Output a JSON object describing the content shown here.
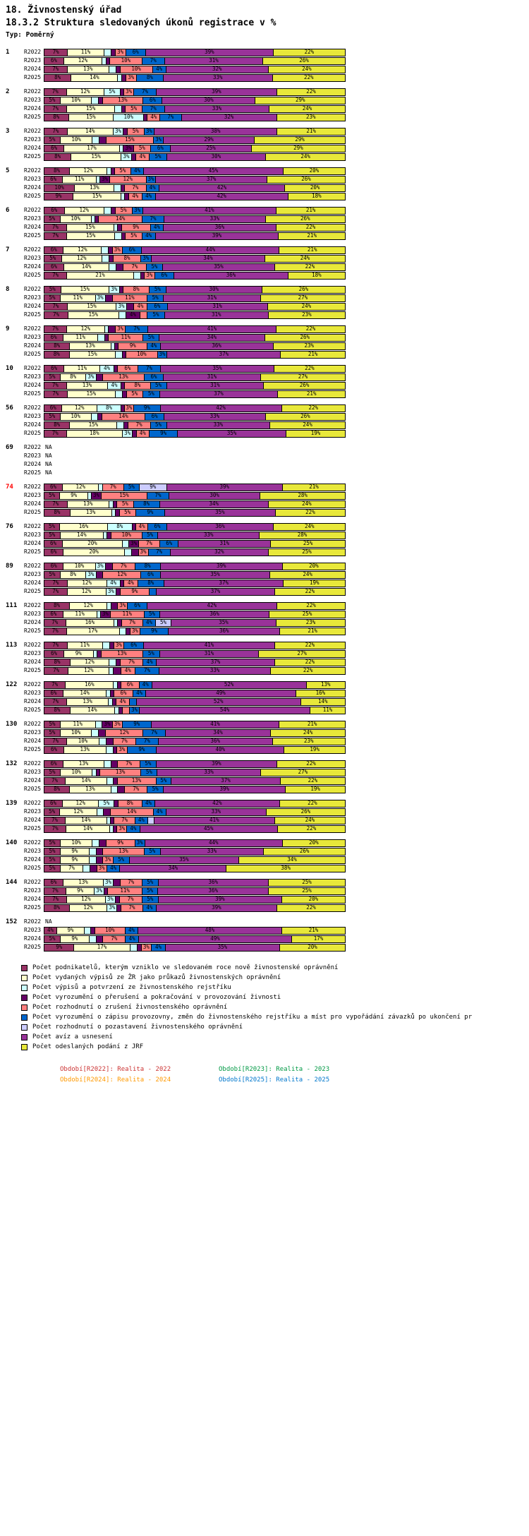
{
  "header": {
    "line1": "18. Živnostenský úřad",
    "line2": "18.3.2 Struktura sledovaných úkonů registrace v %",
    "line3": "Typ: Poměrný"
  },
  "chart_data": {
    "type": "bar",
    "stacked": true,
    "orientation": "horizontal",
    "unit": "%",
    "value_suffix": "%",
    "label_min": 3,
    "na_text": "NA",
    "grid": false,
    "legend_position": "bottom",
    "xlim": [
      0,
      100
    ],
    "highlight_color": "#FF0000",
    "row_labels": [
      "R2022",
      "R2023",
      "R2024",
      "R2025"
    ],
    "series": [
      {
        "name": "Počet podnikatelů, kterým vzniklo ve sledovaném roce nově živnostenské oprávnění",
        "color": "#993366"
      },
      {
        "name": "Počet vydaných výpisů ze ŽR jako průkazů živnostenských oprávnění",
        "color": "#FFFFCC"
      },
      {
        "name": "Počet výpisů a potvrzení ze živnostenského rejstříku",
        "color": "#CCFFFF"
      },
      {
        "name": "Počet vyrozumění o přerušení a pokračování v provozování živnosti",
        "color": "#660066"
      },
      {
        "name": "Počet rozhodnutí o zrušení živnostenského oprávnění",
        "color": "#FF8080"
      },
      {
        "name": "Počet vyrozumění o zápisu provozovny, změn do živnostenského rejstříku a míst pro vypořádání závazků po ukončení pr",
        "color": "#0066CC"
      },
      {
        "name": "Počet rozhodnutí o pozastavení živnostenského oprávnění",
        "color": "#CCCCFF"
      },
      {
        "name": "Počet avíz a usnesení",
        "color": "#993399"
      },
      {
        "name": "Počet odeslaných podání z JRF",
        "color": "#E8E83A"
      }
    ],
    "groups": [
      {
        "id": "1",
        "highlight": false,
        "rows": [
          [
            7,
            11,
            2,
            1,
            3,
            6,
            0,
            39,
            22
          ],
          [
            6,
            12,
            1,
            1,
            10,
            7,
            0,
            31,
            26
          ],
          [
            7,
            13,
            2,
            1,
            10,
            4,
            0,
            32,
            24
          ],
          [
            8,
            14,
            1,
            1,
            3,
            8,
            0,
            33,
            22
          ]
        ]
      },
      {
        "id": "2",
        "highlight": false,
        "rows": [
          [
            7,
            12,
            5,
            1,
            3,
            7,
            0,
            39,
            22
          ],
          [
            5,
            10,
            2,
            1,
            13,
            6,
            0,
            30,
            29
          ],
          [
            7,
            15,
            2,
            1,
            5,
            7,
            0,
            33,
            24
          ],
          [
            8,
            15,
            10,
            1,
            4,
            7,
            0,
            32,
            23
          ]
        ]
      },
      {
        "id": "3",
        "highlight": false,
        "rows": [
          [
            7,
            14,
            3,
            1,
            5,
            3,
            0,
            38,
            21
          ],
          [
            5,
            10,
            2,
            2,
            15,
            3,
            0,
            29,
            29
          ],
          [
            6,
            17,
            1,
            3,
            5,
            6,
            0,
            25,
            29
          ],
          [
            8,
            15,
            3,
            1,
            4,
            5,
            0,
            30,
            24
          ]
        ]
      },
      {
        "id": "5",
        "highlight": false,
        "rows": [
          [
            8,
            12,
            1,
            1,
            5,
            4,
            0,
            45,
            20
          ],
          [
            6,
            11,
            1,
            3,
            12,
            3,
            0,
            37,
            26
          ],
          [
            10,
            13,
            2,
            1,
            7,
            4,
            0,
            42,
            20
          ],
          [
            9,
            15,
            1,
            1,
            4,
            4,
            0,
            42,
            18
          ]
        ]
      },
      {
        "id": "6",
        "highlight": false,
        "rows": [
          [
            6,
            12,
            2,
            1,
            5,
            3,
            0,
            41,
            21
          ],
          [
            5,
            10,
            1,
            1,
            14,
            7,
            0,
            33,
            26
          ],
          [
            7,
            15,
            1,
            1,
            9,
            4,
            0,
            36,
            22
          ],
          [
            7,
            15,
            2,
            1,
            5,
            4,
            0,
            39,
            21
          ]
        ]
      },
      {
        "id": "7",
        "highlight": false,
        "rows": [
          [
            6,
            12,
            2,
            1,
            3,
            6,
            0,
            44,
            21
          ],
          [
            5,
            12,
            2,
            1,
            8,
            3,
            0,
            34,
            24
          ],
          [
            6,
            14,
            2,
            2,
            7,
            5,
            0,
            35,
            22
          ],
          [
            7,
            21,
            2,
            1,
            3,
            6,
            0,
            36,
            18
          ]
        ]
      },
      {
        "id": "8",
        "highlight": false,
        "rows": [
          [
            5,
            15,
            3,
            1,
            8,
            5,
            0,
            30,
            26
          ],
          [
            5,
            11,
            3,
            2,
            11,
            5,
            0,
            31,
            27
          ],
          [
            7,
            15,
            3,
            2,
            4,
            6,
            0,
            31,
            24
          ],
          [
            7,
            15,
            2,
            4,
            2,
            5,
            0,
            31,
            23
          ]
        ]
      },
      {
        "id": "9",
        "highlight": false,
        "rows": [
          [
            7,
            12,
            1,
            2,
            3,
            7,
            0,
            41,
            22
          ],
          [
            6,
            11,
            2,
            1,
            11,
            5,
            0,
            34,
            26
          ],
          [
            8,
            13,
            1,
            1,
            9,
            4,
            0,
            36,
            23
          ],
          [
            8,
            15,
            2,
            1,
            10,
            3,
            0,
            37,
            21
          ]
        ]
      },
      {
        "id": "10",
        "highlight": false,
        "rows": [
          [
            6,
            11,
            4,
            1,
            6,
            7,
            0,
            35,
            22
          ],
          [
            5,
            8,
            3,
            2,
            13,
            6,
            0,
            31,
            27
          ],
          [
            7,
            13,
            4,
            1,
            8,
            5,
            0,
            31,
            26
          ],
          [
            7,
            15,
            2,
            1,
            5,
            5,
            0,
            37,
            21
          ]
        ]
      },
      {
        "id": "56",
        "highlight": false,
        "rows": [
          [
            6,
            12,
            8,
            1,
            3,
            9,
            0,
            42,
            22
          ],
          [
            5,
            10,
            2,
            1,
            14,
            6,
            0,
            33,
            26
          ],
          [
            8,
            15,
            2,
            1,
            7,
            5,
            0,
            33,
            24
          ],
          [
            7,
            18,
            3,
            1,
            4,
            9,
            0,
            35,
            19
          ]
        ]
      },
      {
        "id": "69",
        "highlight": false,
        "rows": [
          null,
          null,
          null,
          null
        ]
      },
      {
        "id": "74",
        "highlight": true,
        "rows": [
          [
            6,
            12,
            1,
            0,
            7,
            5,
            9,
            39,
            21
          ],
          [
            5,
            9,
            1,
            3,
            15,
            7,
            0,
            30,
            28
          ],
          [
            7,
            13,
            1,
            1,
            5,
            8,
            0,
            34,
            24
          ],
          [
            8,
            13,
            1,
            1,
            5,
            9,
            0,
            35,
            22
          ]
        ]
      },
      {
        "id": "76",
        "highlight": false,
        "rows": [
          [
            5,
            16,
            8,
            1,
            4,
            6,
            0,
            36,
            24
          ],
          [
            5,
            14,
            1,
            1,
            10,
            5,
            0,
            33,
            28
          ],
          [
            6,
            20,
            2,
            3,
            7,
            6,
            0,
            31,
            25
          ],
          [
            6,
            20,
            2,
            2,
            3,
            7,
            0,
            32,
            25
          ]
        ]
      },
      {
        "id": "89",
        "highlight": false,
        "rows": [
          [
            6,
            10,
            3,
            2,
            7,
            8,
            0,
            39,
            20
          ],
          [
            5,
            8,
            3,
            2,
            12,
            6,
            0,
            35,
            24
          ],
          [
            7,
            12,
            4,
            1,
            4,
            8,
            0,
            37,
            19
          ],
          [
            7,
            12,
            3,
            1,
            9,
            2,
            0,
            37,
            22
          ]
        ]
      },
      {
        "id": "111",
        "highlight": false,
        "rows": [
          [
            8,
            12,
            1,
            2,
            3,
            6,
            0,
            42,
            22
          ],
          [
            6,
            11,
            1,
            3,
            11,
            5,
            0,
            36,
            25
          ],
          [
            7,
            16,
            1,
            1,
            7,
            4,
            5,
            35,
            23
          ],
          [
            7,
            17,
            2,
            1,
            3,
            9,
            0,
            36,
            21
          ]
        ]
      },
      {
        "id": "113",
        "highlight": false,
        "rows": [
          [
            7,
            11,
            2,
            1,
            3,
            6,
            0,
            41,
            22
          ],
          [
            6,
            9,
            1,
            1,
            13,
            5,
            0,
            31,
            27
          ],
          [
            8,
            12,
            2,
            1,
            7,
            4,
            0,
            37,
            22
          ],
          [
            7,
            12,
            1,
            2,
            4,
            7,
            0,
            33,
            22
          ]
        ]
      },
      {
        "id": "122",
        "highlight": false,
        "rows": [
          [
            7,
            16,
            1,
            1,
            6,
            4,
            0,
            52,
            13
          ],
          [
            6,
            14,
            1,
            1,
            6,
            4,
            0,
            49,
            16
          ],
          [
            7,
            13,
            1,
            1,
            4,
            2,
            0,
            52,
            14
          ],
          [
            8,
            14,
            1,
            1,
            2,
            3,
            0,
            54,
            11
          ]
        ]
      },
      {
        "id": "130",
        "highlight": false,
        "rows": [
          [
            5,
            11,
            2,
            3,
            3,
            9,
            0,
            41,
            21
          ],
          [
            5,
            10,
            2,
            2,
            12,
            7,
            0,
            34,
            24
          ],
          [
            7,
            10,
            2,
            2,
            7,
            7,
            0,
            36,
            23
          ],
          [
            6,
            13,
            2,
            1,
            3,
            9,
            0,
            40,
            19
          ]
        ]
      },
      {
        "id": "132",
        "highlight": false,
        "rows": [
          [
            6,
            13,
            2,
            2,
            7,
            5,
            0,
            39,
            22
          ],
          [
            5,
            10,
            1,
            1,
            13,
            5,
            0,
            33,
            27
          ],
          [
            7,
            14,
            2,
            1,
            13,
            5,
            0,
            37,
            22
          ],
          [
            8,
            13,
            2,
            2,
            7,
            5,
            0,
            39,
            19
          ]
        ]
      },
      {
        "id": "139",
        "highlight": false,
        "rows": [
          [
            6,
            12,
            5,
            1,
            8,
            4,
            0,
            42,
            22
          ],
          [
            5,
            12,
            2,
            2,
            14,
            4,
            0,
            33,
            26
          ],
          [
            7,
            14,
            1,
            1,
            7,
            4,
            2,
            41,
            24
          ],
          [
            7,
            14,
            1,
            1,
            3,
            4,
            0,
            45,
            22
          ]
        ]
      },
      {
        "id": "140",
        "highlight": false,
        "rows": [
          [
            5,
            10,
            2,
            2,
            9,
            3,
            0,
            44,
            20
          ],
          [
            5,
            9,
            2,
            2,
            13,
            5,
            0,
            33,
            26
          ],
          [
            5,
            9,
            2,
            2,
            3,
            5,
            0,
            35,
            34
          ],
          [
            5,
            7,
            2,
            2,
            3,
            4,
            0,
            34,
            38
          ]
        ]
      },
      {
        "id": "144",
        "highlight": false,
        "rows": [
          [
            6,
            13,
            3,
            2,
            7,
            5,
            0,
            36,
            25
          ],
          [
            7,
            9,
            3,
            1,
            11,
            5,
            0,
            36,
            25
          ],
          [
            7,
            12,
            3,
            1,
            7,
            5,
            0,
            39,
            20
          ],
          [
            8,
            12,
            3,
            1,
            7,
            4,
            0,
            39,
            22
          ]
        ]
      },
      {
        "id": "152",
        "highlight": false,
        "rows": [
          null,
          [
            4,
            9,
            2,
            1,
            10,
            4,
            0,
            48,
            21
          ],
          [
            5,
            9,
            2,
            2,
            7,
            4,
            0,
            49,
            17
          ],
          [
            9,
            17,
            2,
            1,
            3,
            4,
            0,
            35,
            20
          ]
        ]
      }
    ]
  },
  "footer": {
    "rows": [
      [
        {
          "text": "Období[R2022]: Realita - 2022",
          "color": "#CC3333"
        },
        {
          "text": "Období[R2023]: Realita - 2023",
          "color": "#009944"
        }
      ],
      [
        {
          "text": "Období[R2024]: Realita - 2024",
          "color": "#FF9900"
        },
        {
          "text": "Období[R2025]: Realita - 2025",
          "color": "#0077CC"
        }
      ]
    ]
  }
}
